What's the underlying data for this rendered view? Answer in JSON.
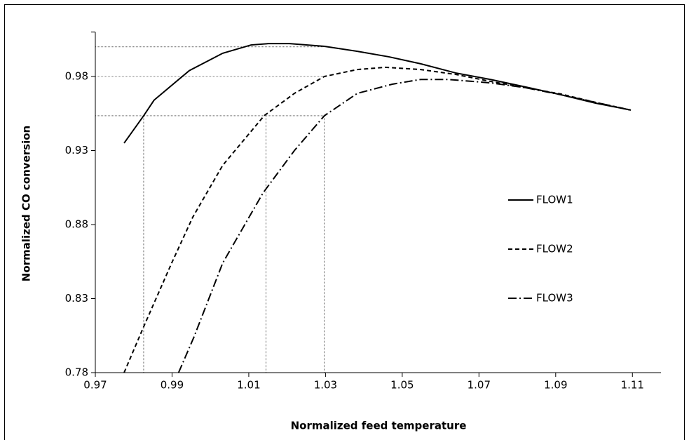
{
  "chart_data": {
    "type": "line",
    "x_label": "Normalized feed temperature",
    "y_label": "Normalized CO conversion",
    "xlim": [
      0.97,
      1.12
    ],
    "ylim": [
      0.78,
      1.01
    ],
    "xticks": [
      0.97,
      0.99,
      1.01,
      1.03,
      1.05,
      1.07,
      1.09,
      1.11
    ],
    "yticks": [
      0.78,
      0.83,
      0.88,
      0.93,
      0.98
    ],
    "grid": false,
    "legend_position": "right",
    "guide_lines": {
      "y": [
        1.0,
        0.98,
        0.9535
      ],
      "x": [
        0.9826,
        1.0145,
        1.0297
      ]
    },
    "series": [
      {
        "name": "FLOW1",
        "color": "#000000",
        "dash": "none",
        "x": [
          0.9775,
          0.9826,
          0.9853,
          0.9945,
          1.0032,
          1.0106,
          1.0151,
          1.0206,
          1.0297,
          1.0383,
          1.0465,
          1.0548,
          1.0639,
          1.073,
          1.0822,
          1.0913,
          1.1004,
          1.1096
        ],
        "values": [
          0.935,
          0.9535,
          0.964,
          0.984,
          0.9957,
          1.0013,
          1.0022,
          1.0022,
          1.0004,
          0.997,
          0.9933,
          0.9886,
          0.9824,
          0.978,
          0.9729,
          0.9677,
          0.962,
          0.9573
        ]
      },
      {
        "name": "FLOW2",
        "color": "#000000",
        "dash": "6,4",
        "x": [
          0.9775,
          0.9826,
          0.9899,
          0.9954,
          1.0032,
          1.014,
          1.0219,
          1.0297,
          1.0383,
          1.0456,
          1.0548,
          1.0639,
          1.073,
          1.0822,
          1.0913,
          1.1004,
          1.1096
        ],
        "values": [
          0.78,
          0.811,
          0.854,
          0.885,
          0.92,
          0.9535,
          0.9686,
          0.98,
          0.9847,
          0.9862,
          0.9847,
          0.9814,
          0.9767,
          0.9724,
          0.9682,
          0.9625,
          0.9573
        ]
      },
      {
        "name": "FLOW3",
        "color": "#000000",
        "dash": "12,4,2,4",
        "x": [
          0.9917,
          0.9957,
          1.0032,
          1.0137,
          1.0219,
          1.0297,
          1.0383,
          1.0474,
          1.0548,
          1.062,
          1.073,
          1.0822,
          1.0913,
          1.1004,
          1.1096
        ],
        "values": [
          0.78,
          0.804,
          0.854,
          0.9013,
          0.93,
          0.9535,
          0.9686,
          0.9748,
          0.978,
          0.978,
          0.9757,
          0.9724,
          0.9677,
          0.9625,
          0.9573
        ]
      }
    ]
  }
}
